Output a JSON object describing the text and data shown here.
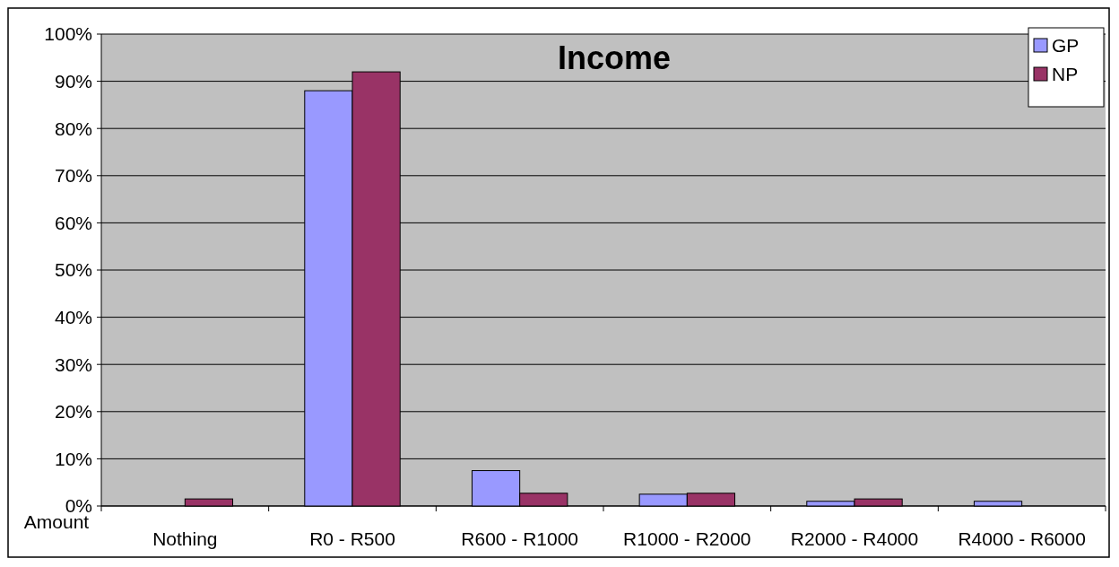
{
  "chart_data": {
    "type": "bar",
    "title": "Income",
    "xlabel": "Amount",
    "categories": [
      "Nothing",
      "R0 - R500",
      "R600 - R1000",
      "R1000 - R2000",
      "R2000 - R4000",
      "R4000 - R6000"
    ],
    "series": [
      {
        "name": "GP",
        "color": "#9999ff",
        "values": [
          null,
          88,
          7.5,
          2.5,
          1,
          1
        ]
      },
      {
        "name": "NP",
        "color": "#993366",
        "values": [
          1.5,
          92,
          2.7,
          2.7,
          1.5,
          null
        ]
      }
    ],
    "ylim": [
      0,
      100
    ],
    "yticks": [
      {
        "value": 0,
        "label": "0%"
      },
      {
        "value": 10,
        "label": "10%"
      },
      {
        "value": 20,
        "label": "20%"
      },
      {
        "value": 30,
        "label": "30%"
      },
      {
        "value": 40,
        "label": "40%"
      },
      {
        "value": 50,
        "label": "50%"
      },
      {
        "value": 60,
        "label": "60%"
      },
      {
        "value": 70,
        "label": "70%"
      },
      {
        "value": 80,
        "label": "80%"
      },
      {
        "value": 90,
        "label": "90%"
      },
      {
        "value": 100,
        "label": "100%"
      }
    ],
    "grid": "y",
    "legend": "top right"
  }
}
